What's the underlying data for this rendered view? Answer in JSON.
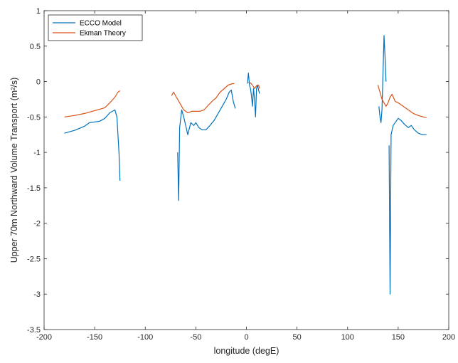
{
  "chart_data": {
    "type": "line",
    "xlabel": "longitude (degE)",
    "ylabel": "Upper 70m Northward Volume Transport (m²/s)",
    "xlim": [
      -200,
      200
    ],
    "ylim": [
      -3.5,
      1
    ],
    "xticks": [
      "-200",
      "-150",
      "-100",
      "-50",
      "0",
      "50",
      "100",
      "150",
      "200"
    ],
    "yticks": [
      "1",
      "0.5",
      "0",
      "-0.5",
      "-1",
      "-1.5",
      "-2",
      "-2.5",
      "-3",
      "-3.5"
    ],
    "legend": "top-left",
    "series": [
      {
        "name": "ECCO Model",
        "color": "#0072bd",
        "segments": [
          [
            [
              -180,
              -0.73
            ],
            [
              -175,
              -0.71
            ],
            [
              -170,
              -0.69
            ],
            [
              -165,
              -0.66
            ],
            [
              -160,
              -0.63
            ],
            [
              -155,
              -0.58
            ],
            [
              -150,
              -0.57
            ],
            [
              -145,
              -0.56
            ],
            [
              -140,
              -0.52
            ],
            [
              -135,
              -0.44
            ],
            [
              -130,
              -0.4
            ],
            [
              -128,
              -0.5
            ],
            [
              -126,
              -1.0
            ],
            [
              -125,
              -1.4
            ]
          ],
          [
            [
              -68,
              -1.0
            ],
            [
              -67,
              -1.68
            ],
            [
              -66,
              -0.65
            ],
            [
              -64,
              -0.4
            ],
            [
              -62,
              -0.5
            ],
            [
              -60,
              -0.62
            ],
            [
              -58,
              -0.75
            ],
            [
              -55,
              -0.58
            ],
            [
              -52,
              -0.62
            ],
            [
              -50,
              -0.58
            ],
            [
              -47,
              -0.65
            ],
            [
              -44,
              -0.68
            ],
            [
              -40,
              -0.68
            ],
            [
              -36,
              -0.62
            ],
            [
              -32,
              -0.55
            ],
            [
              -28,
              -0.45
            ],
            [
              -24,
              -0.35
            ],
            [
              -20,
              -0.25
            ],
            [
              -17,
              -0.15
            ],
            [
              -15,
              -0.12
            ],
            [
              -13,
              -0.28
            ],
            [
              -11,
              -0.38
            ]
          ],
          [
            [
              1,
              -0.03
            ],
            [
              2,
              0.12
            ],
            [
              3,
              -0.05
            ],
            [
              4,
              -0.1
            ],
            [
              5,
              -0.2
            ],
            [
              6,
              -0.35
            ],
            [
              7,
              -0.1
            ],
            [
              8,
              -0.25
            ],
            [
              9,
              -0.5
            ],
            [
              10,
              -0.1
            ],
            [
              11,
              -0.05
            ],
            [
              12,
              -0.12
            ],
            [
              13,
              -0.17
            ]
          ],
          [
            [
              131,
              -0.35
            ],
            [
              132,
              -0.5
            ],
            [
              133,
              -0.58
            ],
            [
              134,
              -0.4
            ],
            [
              135,
              0.1
            ],
            [
              136,
              0.65
            ],
            [
              137,
              0.35
            ],
            [
              138,
              0.0
            ]
          ],
          [
            [
              141,
              -0.9
            ],
            [
              142,
              -3.0
            ],
            [
              143,
              -0.75
            ],
            [
              145,
              -0.62
            ],
            [
              147,
              -0.58
            ],
            [
              150,
              -0.52
            ],
            [
              153,
              -0.55
            ],
            [
              156,
              -0.6
            ],
            [
              160,
              -0.65
            ],
            [
              163,
              -0.62
            ],
            [
              166,
              -0.68
            ],
            [
              170,
              -0.73
            ],
            [
              174,
              -0.75
            ],
            [
              178,
              -0.75
            ]
          ]
        ]
      },
      {
        "name": "Ekman Theory",
        "color": "#d95319",
        "segments": [
          [
            [
              -180,
              -0.5
            ],
            [
              -170,
              -0.48
            ],
            [
              -160,
              -0.45
            ],
            [
              -150,
              -0.41
            ],
            [
              -140,
              -0.37
            ],
            [
              -135,
              -0.3
            ],
            [
              -130,
              -0.22
            ],
            [
              -127,
              -0.15
            ],
            [
              -125,
              -0.13
            ]
          ],
          [
            [
              -74,
              -0.2
            ],
            [
              -72,
              -0.15
            ],
            [
              -70,
              -0.2
            ],
            [
              -66,
              -0.3
            ],
            [
              -62,
              -0.4
            ],
            [
              -58,
              -0.44
            ],
            [
              -54,
              -0.42
            ],
            [
              -50,
              -0.42
            ],
            [
              -46,
              -0.42
            ],
            [
              -42,
              -0.4
            ],
            [
              -38,
              -0.34
            ],
            [
              -34,
              -0.28
            ],
            [
              -30,
              -0.23
            ],
            [
              -26,
              -0.15
            ],
            [
              -22,
              -0.1
            ],
            [
              -18,
              -0.05
            ],
            [
              -14,
              -0.03
            ],
            [
              -12,
              -0.03
            ]
          ],
          [
            [
              2,
              -0.01
            ],
            [
              4,
              -0.02
            ],
            [
              6,
              -0.05
            ],
            [
              8,
              -0.1
            ],
            [
              10,
              -0.06
            ],
            [
              12,
              -0.05
            ],
            [
              13,
              -0.1
            ]
          ],
          [
            [
              130,
              -0.05
            ],
            [
              132,
              -0.15
            ],
            [
              134,
              -0.25
            ],
            [
              136,
              -0.3
            ],
            [
              138,
              -0.35
            ],
            [
              140,
              -0.3
            ],
            [
              142,
              -0.22
            ],
            [
              144,
              -0.18
            ],
            [
              147,
              -0.28
            ],
            [
              150,
              -0.3
            ],
            [
              155,
              -0.35
            ],
            [
              160,
              -0.4
            ],
            [
              165,
              -0.45
            ],
            [
              170,
              -0.48
            ],
            [
              175,
              -0.5
            ],
            [
              178,
              -0.51
            ]
          ]
        ]
      }
    ]
  }
}
